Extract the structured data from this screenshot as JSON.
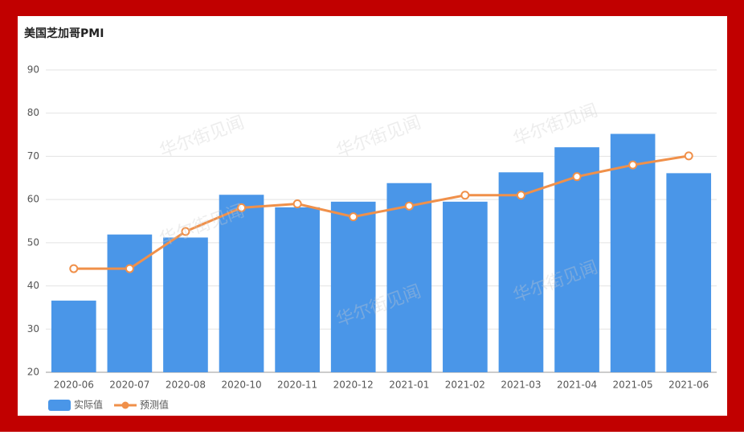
{
  "chart_data": {
    "type": "bar",
    "title": "美国芝加哥PMI",
    "watermark": "华尔街见闻",
    "categories": [
      "2020-06",
      "2020-07",
      "2020-08",
      "2020-10",
      "2020-11",
      "2020-12",
      "2021-01",
      "2021-02",
      "2021-03",
      "2021-04",
      "2021-05",
      "2021-06"
    ],
    "series": [
      {
        "name": "实际值",
        "type": "bar",
        "color": "#4a96e8",
        "values": [
          36.6,
          51.9,
          51.2,
          61.1,
          58.2,
          59.5,
          63.8,
          59.5,
          66.3,
          72.1,
          75.2,
          66.1
        ]
      },
      {
        "name": "预测值",
        "type": "line",
        "color": "#f0904a",
        "values": [
          44.0,
          44.0,
          52.6,
          58.1,
          59.0,
          56.0,
          58.5,
          61.0,
          61.0,
          65.3,
          68.0,
          70.1
        ]
      }
    ],
    "ylim": [
      20,
      90
    ],
    "yticks": [
      20,
      30,
      40,
      50,
      60,
      70,
      80,
      90
    ],
    "grid": true,
    "legend": "bottom-left"
  }
}
